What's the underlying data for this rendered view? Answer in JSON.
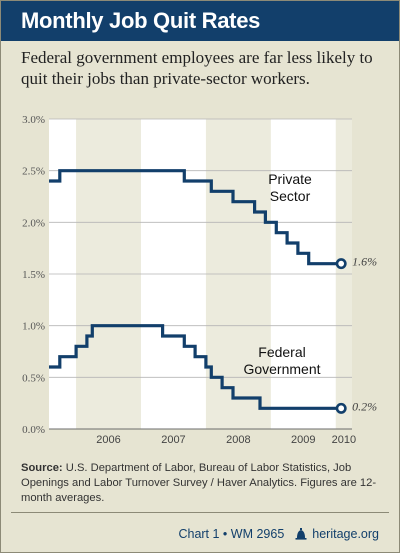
{
  "title": "Monthly Job Quit Rates",
  "subtitle": "Federal government employees are far less likely to quit their jobs than private-sector workers.",
  "source": {
    "label": "Source:",
    "text": "U.S. Department of Labor, Bureau of Labor Statistics, Job Openings and Labor Turnover Survey / Haver Analytics. Figures are 12-month averages."
  },
  "footer": {
    "chart_id": "Chart 1 • WM 2965",
    "site": "heritage.org"
  },
  "colors": {
    "line": "#123f6b",
    "plot_background": "#ffffff",
    "year_band": "#ecebdd",
    "page_background": "#e6e4d2"
  },
  "chart_data": {
    "type": "line",
    "title": "Monthly Job Quit Rates",
    "xlabel": "",
    "ylabel": "",
    "x_start": "2005-08",
    "x_end": "2010-04",
    "ylim": [
      0,
      3.0
    ],
    "y_ticks": [
      "0.0%",
      "0.5%",
      "1.0%",
      "1.5%",
      "2.0%",
      "2.5%",
      "3.0%"
    ],
    "x_ticks": [
      {
        "label": "2006",
        "start": "2006-01",
        "end": "2007-01"
      },
      {
        "label": "2007",
        "start": "2007-01",
        "end": "2008-01"
      },
      {
        "label": "2008",
        "start": "2008-01",
        "end": "2009-01"
      },
      {
        "label": "2009",
        "start": "2009-01",
        "end": "2010-01"
      },
      {
        "label": "2010",
        "start": "2010-01",
        "end": "2010-04"
      }
    ],
    "shaded_years": [
      "2006",
      "2008",
      "2010"
    ],
    "grid": true,
    "series": [
      {
        "name": "Private Sector",
        "label_lines": [
          "Private",
          "Sector"
        ],
        "end_label": "1.6%",
        "points": [
          [
            "2005-08",
            2.4
          ],
          [
            "2005-09",
            2.4
          ],
          [
            "2005-10",
            2.5
          ],
          [
            "2005-11",
            2.5
          ],
          [
            "2005-12",
            2.5
          ],
          [
            "2006-01",
            2.5
          ],
          [
            "2006-02",
            2.5
          ],
          [
            "2006-03",
            2.5
          ],
          [
            "2006-04",
            2.5
          ],
          [
            "2006-05",
            2.5
          ],
          [
            "2006-06",
            2.5
          ],
          [
            "2006-07",
            2.5
          ],
          [
            "2006-08",
            2.5
          ],
          [
            "2006-09",
            2.5
          ],
          [
            "2006-10",
            2.5
          ],
          [
            "2006-11",
            2.5
          ],
          [
            "2006-12",
            2.5
          ],
          [
            "2007-01",
            2.5
          ],
          [
            "2007-02",
            2.5
          ],
          [
            "2007-03",
            2.5
          ],
          [
            "2007-04",
            2.5
          ],
          [
            "2007-05",
            2.5
          ],
          [
            "2007-06",
            2.5
          ],
          [
            "2007-07",
            2.5
          ],
          [
            "2007-08",
            2.5
          ],
          [
            "2007-09",
            2.4
          ],
          [
            "2007-10",
            2.4
          ],
          [
            "2007-11",
            2.4
          ],
          [
            "2007-12",
            2.4
          ],
          [
            "2008-01",
            2.4
          ],
          [
            "2008-02",
            2.3
          ],
          [
            "2008-03",
            2.3
          ],
          [
            "2008-04",
            2.3
          ],
          [
            "2008-05",
            2.3
          ],
          [
            "2008-06",
            2.2
          ],
          [
            "2008-07",
            2.2
          ],
          [
            "2008-08",
            2.2
          ],
          [
            "2008-09",
            2.2
          ],
          [
            "2008-10",
            2.1
          ],
          [
            "2008-11",
            2.1
          ],
          [
            "2008-12",
            2.0
          ],
          [
            "2009-01",
            2.0
          ],
          [
            "2009-02",
            1.9
          ],
          [
            "2009-03",
            1.9
          ],
          [
            "2009-04",
            1.8
          ],
          [
            "2009-05",
            1.8
          ],
          [
            "2009-06",
            1.7
          ],
          [
            "2009-07",
            1.7
          ],
          [
            "2009-08",
            1.6
          ],
          [
            "2009-09",
            1.6
          ],
          [
            "2009-10",
            1.6
          ],
          [
            "2009-11",
            1.6
          ],
          [
            "2009-12",
            1.6
          ],
          [
            "2010-01",
            1.6
          ],
          [
            "2010-02",
            1.6
          ]
        ]
      },
      {
        "name": "Federal Government",
        "label_lines": [
          "Federal",
          "Government"
        ],
        "end_label": "0.2%",
        "points": [
          [
            "2005-08",
            0.6
          ],
          [
            "2005-09",
            0.6
          ],
          [
            "2005-10",
            0.7
          ],
          [
            "2005-11",
            0.7
          ],
          [
            "2005-12",
            0.7
          ],
          [
            "2006-01",
            0.8
          ],
          [
            "2006-02",
            0.8
          ],
          [
            "2006-03",
            0.9
          ],
          [
            "2006-04",
            1.0
          ],
          [
            "2006-05",
            1.0
          ],
          [
            "2006-06",
            1.0
          ],
          [
            "2006-07",
            1.0
          ],
          [
            "2006-08",
            1.0
          ],
          [
            "2006-09",
            1.0
          ],
          [
            "2006-10",
            1.0
          ],
          [
            "2006-11",
            1.0
          ],
          [
            "2006-12",
            1.0
          ],
          [
            "2007-01",
            1.0
          ],
          [
            "2007-02",
            1.0
          ],
          [
            "2007-03",
            1.0
          ],
          [
            "2007-04",
            1.0
          ],
          [
            "2007-05",
            0.9
          ],
          [
            "2007-06",
            0.9
          ],
          [
            "2007-07",
            0.9
          ],
          [
            "2007-08",
            0.9
          ],
          [
            "2007-09",
            0.8
          ],
          [
            "2007-10",
            0.8
          ],
          [
            "2007-11",
            0.7
          ],
          [
            "2007-12",
            0.7
          ],
          [
            "2008-01",
            0.6
          ],
          [
            "2008-02",
            0.5
          ],
          [
            "2008-03",
            0.5
          ],
          [
            "2008-04",
            0.4
          ],
          [
            "2008-05",
            0.4
          ],
          [
            "2008-06",
            0.3
          ],
          [
            "2008-07",
            0.3
          ],
          [
            "2008-08",
            0.3
          ],
          [
            "2008-09",
            0.3
          ],
          [
            "2008-10",
            0.3
          ],
          [
            "2008-11",
            0.2
          ],
          [
            "2008-12",
            0.2
          ],
          [
            "2009-01",
            0.2
          ],
          [
            "2009-02",
            0.2
          ],
          [
            "2009-03",
            0.2
          ],
          [
            "2009-04",
            0.2
          ],
          [
            "2009-05",
            0.2
          ],
          [
            "2009-06",
            0.2
          ],
          [
            "2009-07",
            0.2
          ],
          [
            "2009-08",
            0.2
          ],
          [
            "2009-09",
            0.2
          ],
          [
            "2009-10",
            0.2
          ],
          [
            "2009-11",
            0.2
          ],
          [
            "2009-12",
            0.2
          ],
          [
            "2010-01",
            0.2
          ],
          [
            "2010-02",
            0.2
          ]
        ]
      }
    ]
  }
}
